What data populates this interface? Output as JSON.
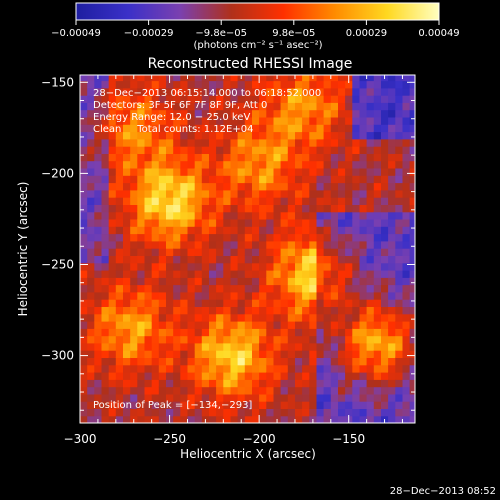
{
  "chart_data": {
    "type": "heatmap",
    "title": "Reconstructed RHESSI Image",
    "xlabel": "Heliocentric X (arcsec)",
    "ylabel": "Heliocentric Y (arcsec)",
    "x_range": [
      -300,
      -113
    ],
    "y_range": [
      -337,
      -146
    ],
    "x_ticks": [
      -300,
      -250,
      -200,
      -150
    ],
    "x_tick_labels": [
      "−300",
      "−250",
      "−200",
      "−150"
    ],
    "y_ticks": [
      -150,
      -200,
      -250,
      -300
    ],
    "y_tick_labels": [
      "−150",
      "−200",
      "−250",
      "−300"
    ],
    "colorbar": {
      "range": [
        -0.00049,
        0.00049
      ],
      "tick_labels": [
        "−0.00049",
        "−0.00029",
        "−9.8e−05",
        "9.8e−05",
        "0.00029",
        "0.00049"
      ],
      "unit_label": "(photons cm⁻² s⁻¹ asec⁻²)",
      "colors": [
        "#1e1ea0",
        "#3a30c8",
        "#7a40b0",
        "#b0301a",
        "#ff3000",
        "#ff8c00",
        "#ffd820",
        "#ffffc0"
      ]
    },
    "annotations": [
      "28−Dec−2013 06:15:14.000 to 06:18:52.000",
      "Detectors: 3F 5F 6F 7F 8F 9F, Att 0",
      "Energy Range: 12.0 − 25.0 keV",
      "Clean     Total counts: 1.12E+04"
    ],
    "peak_label": "Position of Peak = [−134,−293]",
    "peak": [
      -134,
      -293
    ],
    "emission_sources": [
      {
        "x": -134,
        "y": -293,
        "value": 1.0
      },
      {
        "x": -250,
        "y": -215,
        "value": 0.85
      },
      {
        "x": -170,
        "y": -255,
        "value": 0.8
      },
      {
        "x": -215,
        "y": -300,
        "value": 0.78
      },
      {
        "x": -272,
        "y": -285,
        "value": 0.6
      },
      {
        "x": -200,
        "y": -195,
        "value": 0.55
      },
      {
        "x": -175,
        "y": -163,
        "value": 0.55
      },
      {
        "x": -270,
        "y": -175,
        "value": 0.5
      }
    ]
  },
  "timestamp": "28−Dec−2013 08:52"
}
